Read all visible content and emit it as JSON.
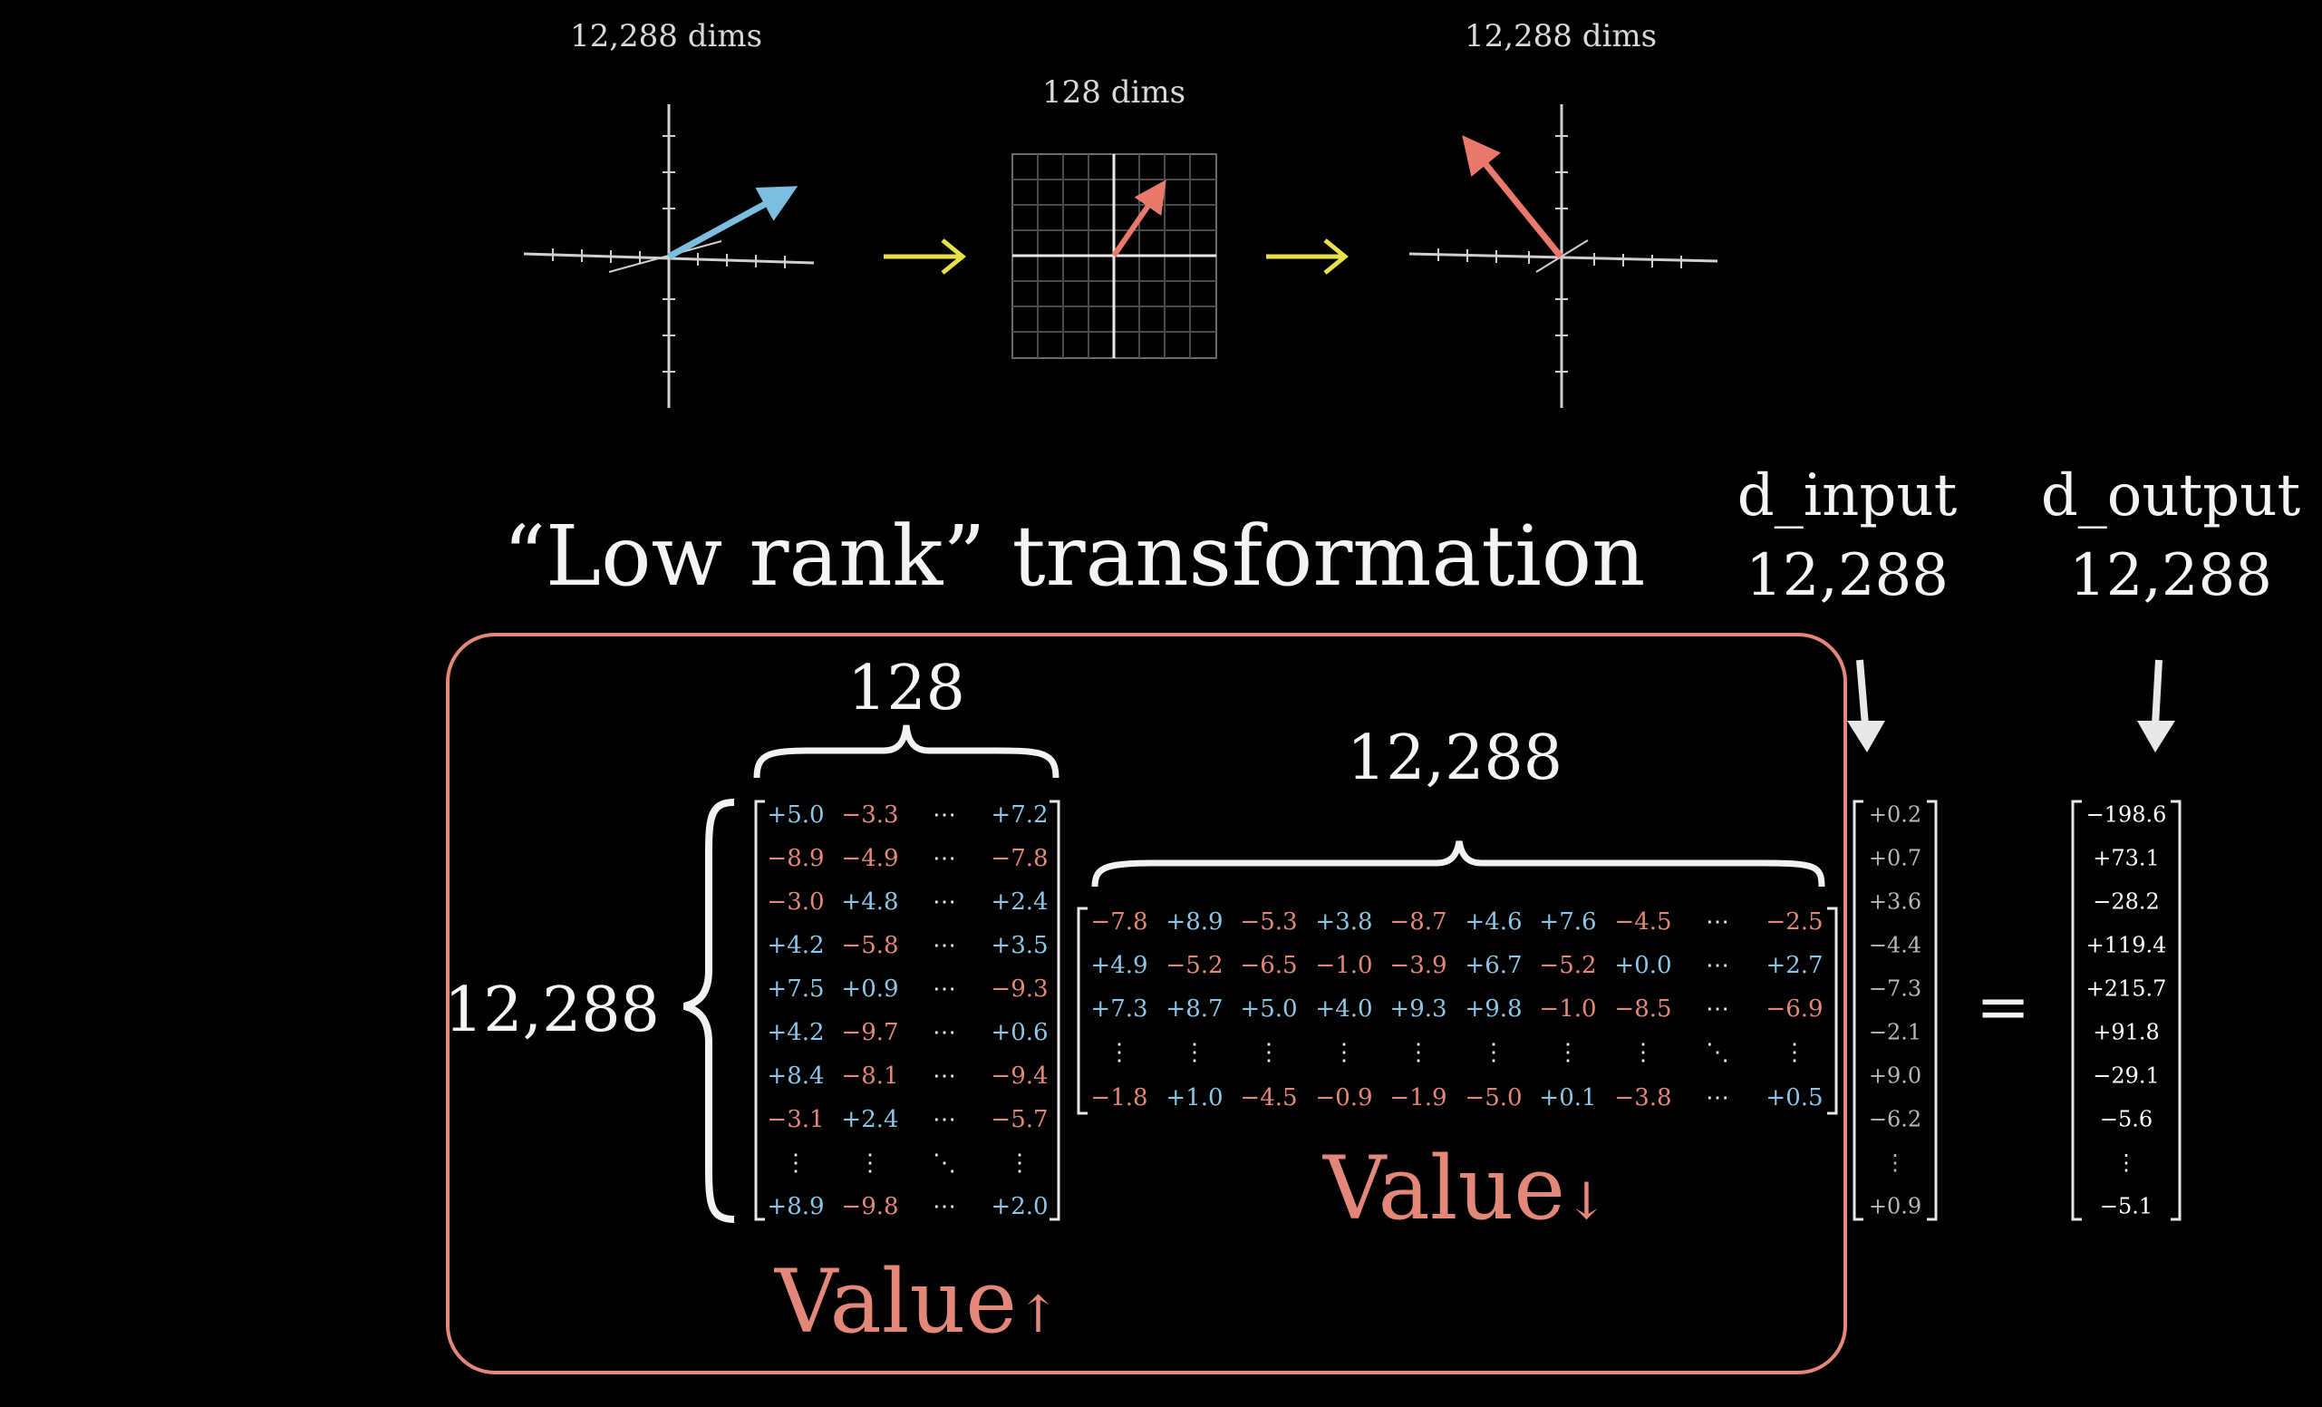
{
  "top_labels": {
    "left": "12,288 dims",
    "middle": "128 dims",
    "right": "12,288 dims"
  },
  "title": "“Low rank” transformation",
  "d_input": {
    "name": "d_input",
    "value": "12,288"
  },
  "d_output": {
    "name": "d_output",
    "value": "12,288"
  },
  "brace_labels": {
    "up_width": "128",
    "up_height": "12,288",
    "down_width": "12,288"
  },
  "value_up": {
    "text": "Value",
    "arrow": "↑"
  },
  "value_down": {
    "text": "Value",
    "arrow": "↓"
  },
  "equals": "=",
  "colors": {
    "positive": "#8cc6e6",
    "negative": "#e38779",
    "box": "#e38779",
    "arrow": "#e8e04a",
    "vector_blue": "#7cbde0",
    "vector_red": "#e8796c"
  },
  "value_up_matrix": [
    [
      "+5.0",
      "−3.3",
      "⋯",
      "+7.2"
    ],
    [
      "−8.9",
      "−4.9",
      "⋯",
      "−7.8"
    ],
    [
      "−3.0",
      "+4.8",
      "⋯",
      "+2.4"
    ],
    [
      "+4.2",
      "−5.8",
      "⋯",
      "+3.5"
    ],
    [
      "+7.5",
      "+0.9",
      "⋯",
      "−9.3"
    ],
    [
      "+4.2",
      "−9.7",
      "⋯",
      "+0.6"
    ],
    [
      "+8.4",
      "−8.1",
      "⋯",
      "−9.4"
    ],
    [
      "−3.1",
      "+2.4",
      "⋯",
      "−5.7"
    ],
    [
      "⋮",
      "⋮",
      "⋱",
      "⋮"
    ],
    [
      "+8.9",
      "−9.8",
      "⋯",
      "+2.0"
    ]
  ],
  "value_down_matrix": [
    [
      "−7.8",
      "+8.9",
      "−5.3",
      "+3.8",
      "−8.7",
      "+4.6",
      "+7.6",
      "−4.5",
      "⋯",
      "−2.5"
    ],
    [
      "+4.9",
      "−5.2",
      "−6.5",
      "−1.0",
      "−3.9",
      "+6.7",
      "−5.2",
      "+0.0",
      "⋯",
      "+2.7"
    ],
    [
      "+7.3",
      "+8.7",
      "+5.0",
      "+4.0",
      "+9.3",
      "+9.8",
      "−1.0",
      "−8.5",
      "⋯",
      "−6.9"
    ],
    [
      "⋮",
      "⋮",
      "⋮",
      "⋮",
      "⋮",
      "⋮",
      "⋮",
      "⋮",
      "⋱",
      "⋮"
    ],
    [
      "−1.8",
      "+1.0",
      "−4.5",
      "−0.9",
      "−1.9",
      "−5.0",
      "+0.1",
      "−3.8",
      "⋯",
      "+0.5"
    ]
  ],
  "input_vector": [
    "+0.2",
    "+0.7",
    "+3.6",
    "−4.4",
    "−7.3",
    "−2.1",
    "+9.0",
    "−6.2",
    "⋮",
    "+0.9"
  ],
  "output_vector": [
    "−198.6",
    "+73.1",
    "−28.2",
    "+119.4",
    "+215.7",
    "+91.8",
    "−29.1",
    "−5.6",
    "⋮",
    "−5.1"
  ]
}
